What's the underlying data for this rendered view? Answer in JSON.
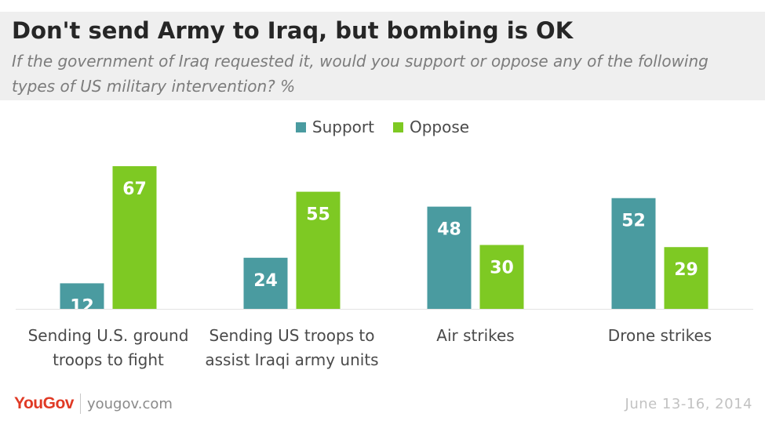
{
  "header": {
    "title": "Don't send Army to Iraq, but bombing is OK",
    "subtitle": "If the government of Iraq requested it, would you support or oppose any of the following types of US military intervention? %"
  },
  "legend": {
    "support_label": "Support",
    "oppose_label": "Oppose"
  },
  "footer": {
    "logo": "YouGov",
    "site": "yougov.com",
    "date": "June 13-16, 2014"
  },
  "colors": {
    "support": "#4a9ba0",
    "oppose": "#7ec923",
    "header_bg": "#efefef"
  },
  "chart_data": {
    "type": "bar",
    "categories": [
      [
        "Sending U.S. ground",
        "troops to fight"
      ],
      [
        "Sending US troops to",
        "assist Iraqi army units"
      ],
      [
        "Air strikes"
      ],
      [
        "Drone strikes"
      ]
    ],
    "series": [
      {
        "name": "Support",
        "values": [
          12,
          24,
          48,
          52
        ]
      },
      {
        "name": "Oppose",
        "values": [
          67,
          55,
          30,
          29
        ]
      }
    ],
    "title": "Don't send Army to Iraq, but bombing is OK",
    "xlabel": "",
    "ylabel": "",
    "ylim": [
      0,
      67
    ],
    "grid": false,
    "legend_position": "top-center"
  }
}
